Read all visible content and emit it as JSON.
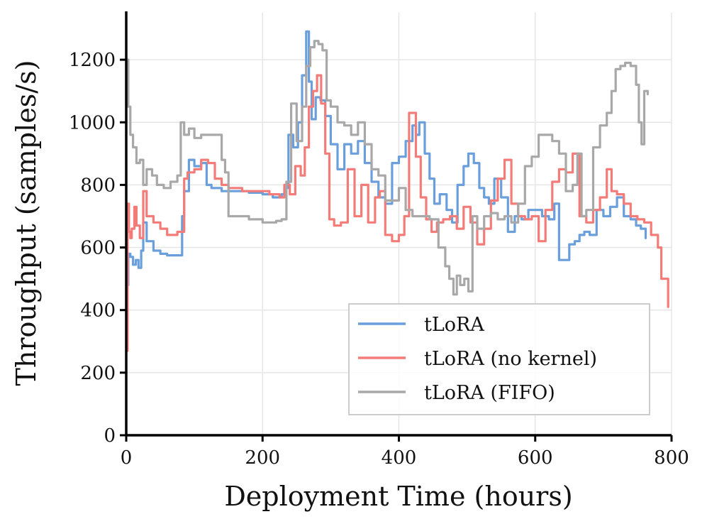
{
  "chart_data": {
    "type": "line",
    "title": "",
    "xlabel": "Deployment Time (hours)",
    "ylabel": "Throughput (samples/s)",
    "xlim": [
      0,
      800
    ],
    "ylim": [
      0,
      1350
    ],
    "xticks": [
      0,
      200,
      400,
      600,
      800
    ],
    "yticks": [
      0,
      200,
      400,
      600,
      800,
      1000,
      1200
    ],
    "xtick_labels": [
      "0",
      "200",
      "400",
      "600",
      "800"
    ],
    "ytick_labels": [
      "0",
      "200",
      "400",
      "600",
      "800",
      "1000",
      "1200"
    ],
    "grid": true,
    "legend_position": "lower-right",
    "series": [
      {
        "name": "tLoRA",
        "color": "#6a9fdc",
        "x": [
          0,
          3,
          6,
          10,
          14,
          18,
          22,
          25,
          30,
          40,
          50,
          60,
          75,
          82,
          85,
          92,
          100,
          110,
          118,
          125,
          140,
          160,
          180,
          200,
          215,
          228,
          232,
          238,
          245,
          252,
          258,
          264,
          268,
          272,
          278,
          285,
          292,
          300,
          310,
          320,
          330,
          340,
          350,
          360,
          370,
          380,
          390,
          400,
          410,
          420,
          425,
          430,
          438,
          445,
          452,
          460,
          470,
          478,
          486,
          495,
          502,
          510,
          518,
          525,
          532,
          540,
          550,
          560,
          570,
          580,
          590,
          600,
          610,
          620,
          628,
          635,
          642,
          650,
          658,
          665,
          672,
          680,
          690,
          700,
          710,
          720,
          730,
          740,
          748,
          755,
          762
        ],
        "y": [
          480,
          580,
          570,
          545,
          560,
          535,
          590,
          680,
          620,
          590,
          580,
          575,
          575,
          700,
          780,
          880,
          860,
          870,
          800,
          790,
          780,
          780,
          775,
          770,
          760,
          770,
          790,
          960,
          920,
          1000,
          1150,
          1290,
          1130,
          1010,
          1080,
          1070,
          1020,
          930,
          850,
          930,
          900,
          940,
          870,
          810,
          760,
          740,
          870,
          890,
          940,
          990,
          960,
          1000,
          900,
          820,
          740,
          770,
          720,
          680,
          800,
          860,
          900,
          870,
          790,
          760,
          740,
          820,
          760,
          650,
          700,
          690,
          720,
          720,
          700,
          690,
          740,
          560,
          560,
          610,
          620,
          640,
          650,
          640,
          720,
          700,
          730,
          760,
          700,
          690,
          670,
          660,
          630
        ]
      },
      {
        "name": "tLoRA (no kernel)",
        "color": "#f47c78",
        "x": [
          0,
          2,
          4,
          6,
          8,
          12,
          15,
          20,
          25,
          30,
          40,
          50,
          60,
          75,
          85,
          90,
          100,
          110,
          120,
          130,
          140,
          150,
          170,
          190,
          210,
          225,
          232,
          240,
          248,
          256,
          262,
          268,
          274,
          280,
          286,
          292,
          298,
          305,
          315,
          325,
          335,
          345,
          355,
          365,
          372,
          380,
          390,
          400,
          408,
          415,
          425,
          432,
          440,
          448,
          456,
          465,
          475,
          485,
          495,
          505,
          515,
          525,
          535,
          545,
          555,
          565,
          575,
          585,
          595,
          605,
          615,
          625,
          635,
          645,
          655,
          665,
          675,
          685,
          695,
          705,
          712,
          720,
          730,
          740,
          750,
          760,
          770,
          780,
          785,
          795
        ],
        "y": [
          270,
          740,
          650,
          630,
          660,
          730,
          670,
          630,
          780,
          700,
          680,
          660,
          640,
          650,
          820,
          840,
          850,
          880,
          870,
          820,
          800,
          790,
          780,
          780,
          770,
          760,
          800,
          770,
          860,
          830,
          920,
          1050,
          1100,
          1150,
          1060,
          900,
          690,
          670,
          680,
          850,
          700,
          800,
          680,
          760,
          780,
          640,
          620,
          640,
          700,
          1030,
          890,
          760,
          690,
          650,
          680,
          690,
          700,
          660,
          730,
          680,
          610,
          660,
          750,
          820,
          880,
          740,
          700,
          690,
          700,
          620,
          720,
          810,
          850,
          840,
          900,
          700,
          680,
          720,
          760,
          850,
          780,
          770,
          740,
          700,
          690,
          680,
          640,
          600,
          500,
          410
        ]
      },
      {
        "name": "tLoRA (FIFO)",
        "color": "#a8a8a8",
        "x": [
          0,
          3,
          6,
          10,
          15,
          20,
          25,
          30,
          38,
          45,
          55,
          65,
          75,
          80,
          85,
          92,
          100,
          110,
          125,
          140,
          145,
          150,
          160,
          180,
          200,
          220,
          228,
          235,
          242,
          250,
          258,
          264,
          270,
          276,
          282,
          288,
          294,
          300,
          310,
          320,
          330,
          340,
          350,
          360,
          370,
          380,
          390,
          400,
          410,
          420,
          432,
          445,
          458,
          468,
          474,
          480,
          485,
          490,
          496,
          502,
          508,
          515,
          525,
          535,
          545,
          555,
          565,
          575,
          585,
          595,
          605,
          615,
          625,
          635,
          645,
          655,
          662,
          668,
          675,
          685,
          695,
          705,
          712,
          718,
          725,
          732,
          740,
          748,
          752,
          756,
          760,
          765
        ],
        "y": [
          1200,
          1050,
          960,
          920,
          870,
          880,
          800,
          850,
          830,
          800,
          790,
          810,
          830,
          1000,
          960,
          980,
          950,
          960,
          960,
          880,
          840,
          700,
          700,
          690,
          680,
          685,
          690,
          810,
          1060,
          940,
          1050,
          1180,
          1240,
          1260,
          1250,
          1230,
          1070,
          1050,
          1000,
          990,
          960,
          1000,
          930,
          850,
          830,
          750,
          750,
          790,
          720,
          700,
          700,
          690,
          600,
          540,
          500,
          450,
          510,
          480,
          500,
          460,
          700,
          660,
          700,
          710,
          690,
          700,
          680,
          740,
          860,
          890,
          960,
          960,
          940,
          900,
          780,
          800,
          900,
          700,
          720,
          920,
          990,
          1030,
          1100,
          1170,
          1180,
          1190,
          1180,
          1120,
          1000,
          930,
          1100,
          1090
        ]
      }
    ]
  },
  "legend": {
    "items": [
      "tLoRA",
      "tLoRA (no kernel)",
      "tLoRA (FIFO)"
    ]
  }
}
